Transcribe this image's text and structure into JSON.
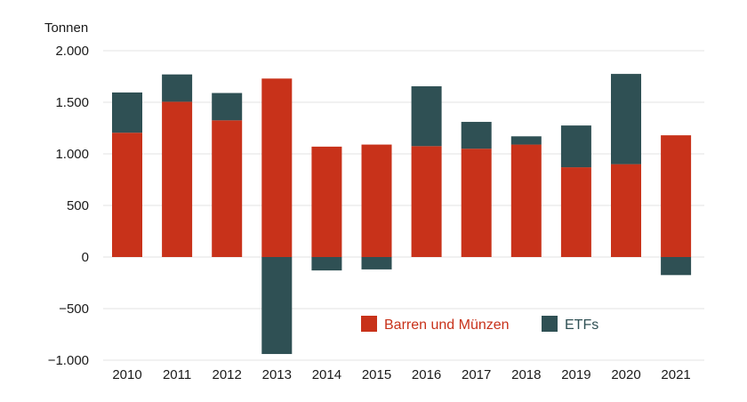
{
  "chart_data": {
    "type": "bar",
    "stacked": true,
    "title": "",
    "xlabel": "",
    "ylabel": "Tonnen",
    "ylim": [
      -1000,
      2000
    ],
    "yticks": [
      2000,
      1500,
      1000,
      500,
      0,
      -500,
      -1000
    ],
    "ytick_labels": [
      "2.000",
      "1.500",
      "1.000",
      "500",
      "0",
      "−500",
      "−1.000"
    ],
    "grid": true,
    "legend_position": "bottom-center",
    "categories": [
      "2010",
      "2011",
      "2012",
      "2013",
      "2014",
      "2015",
      "2016",
      "2017",
      "2018",
      "2019",
      "2020",
      "2021"
    ],
    "series": [
      {
        "name": "Barren und Münzen",
        "color": "#c8321a",
        "values": [
          1205,
          1505,
          1325,
          1730,
          1070,
          1090,
          1075,
          1050,
          1090,
          870,
          900,
          1180
        ]
      },
      {
        "name": "ETFs",
        "color": "#2f5054",
        "values": [
          390,
          265,
          265,
          -940,
          -130,
          -120,
          580,
          260,
          80,
          405,
          875,
          -175
        ]
      }
    ]
  }
}
